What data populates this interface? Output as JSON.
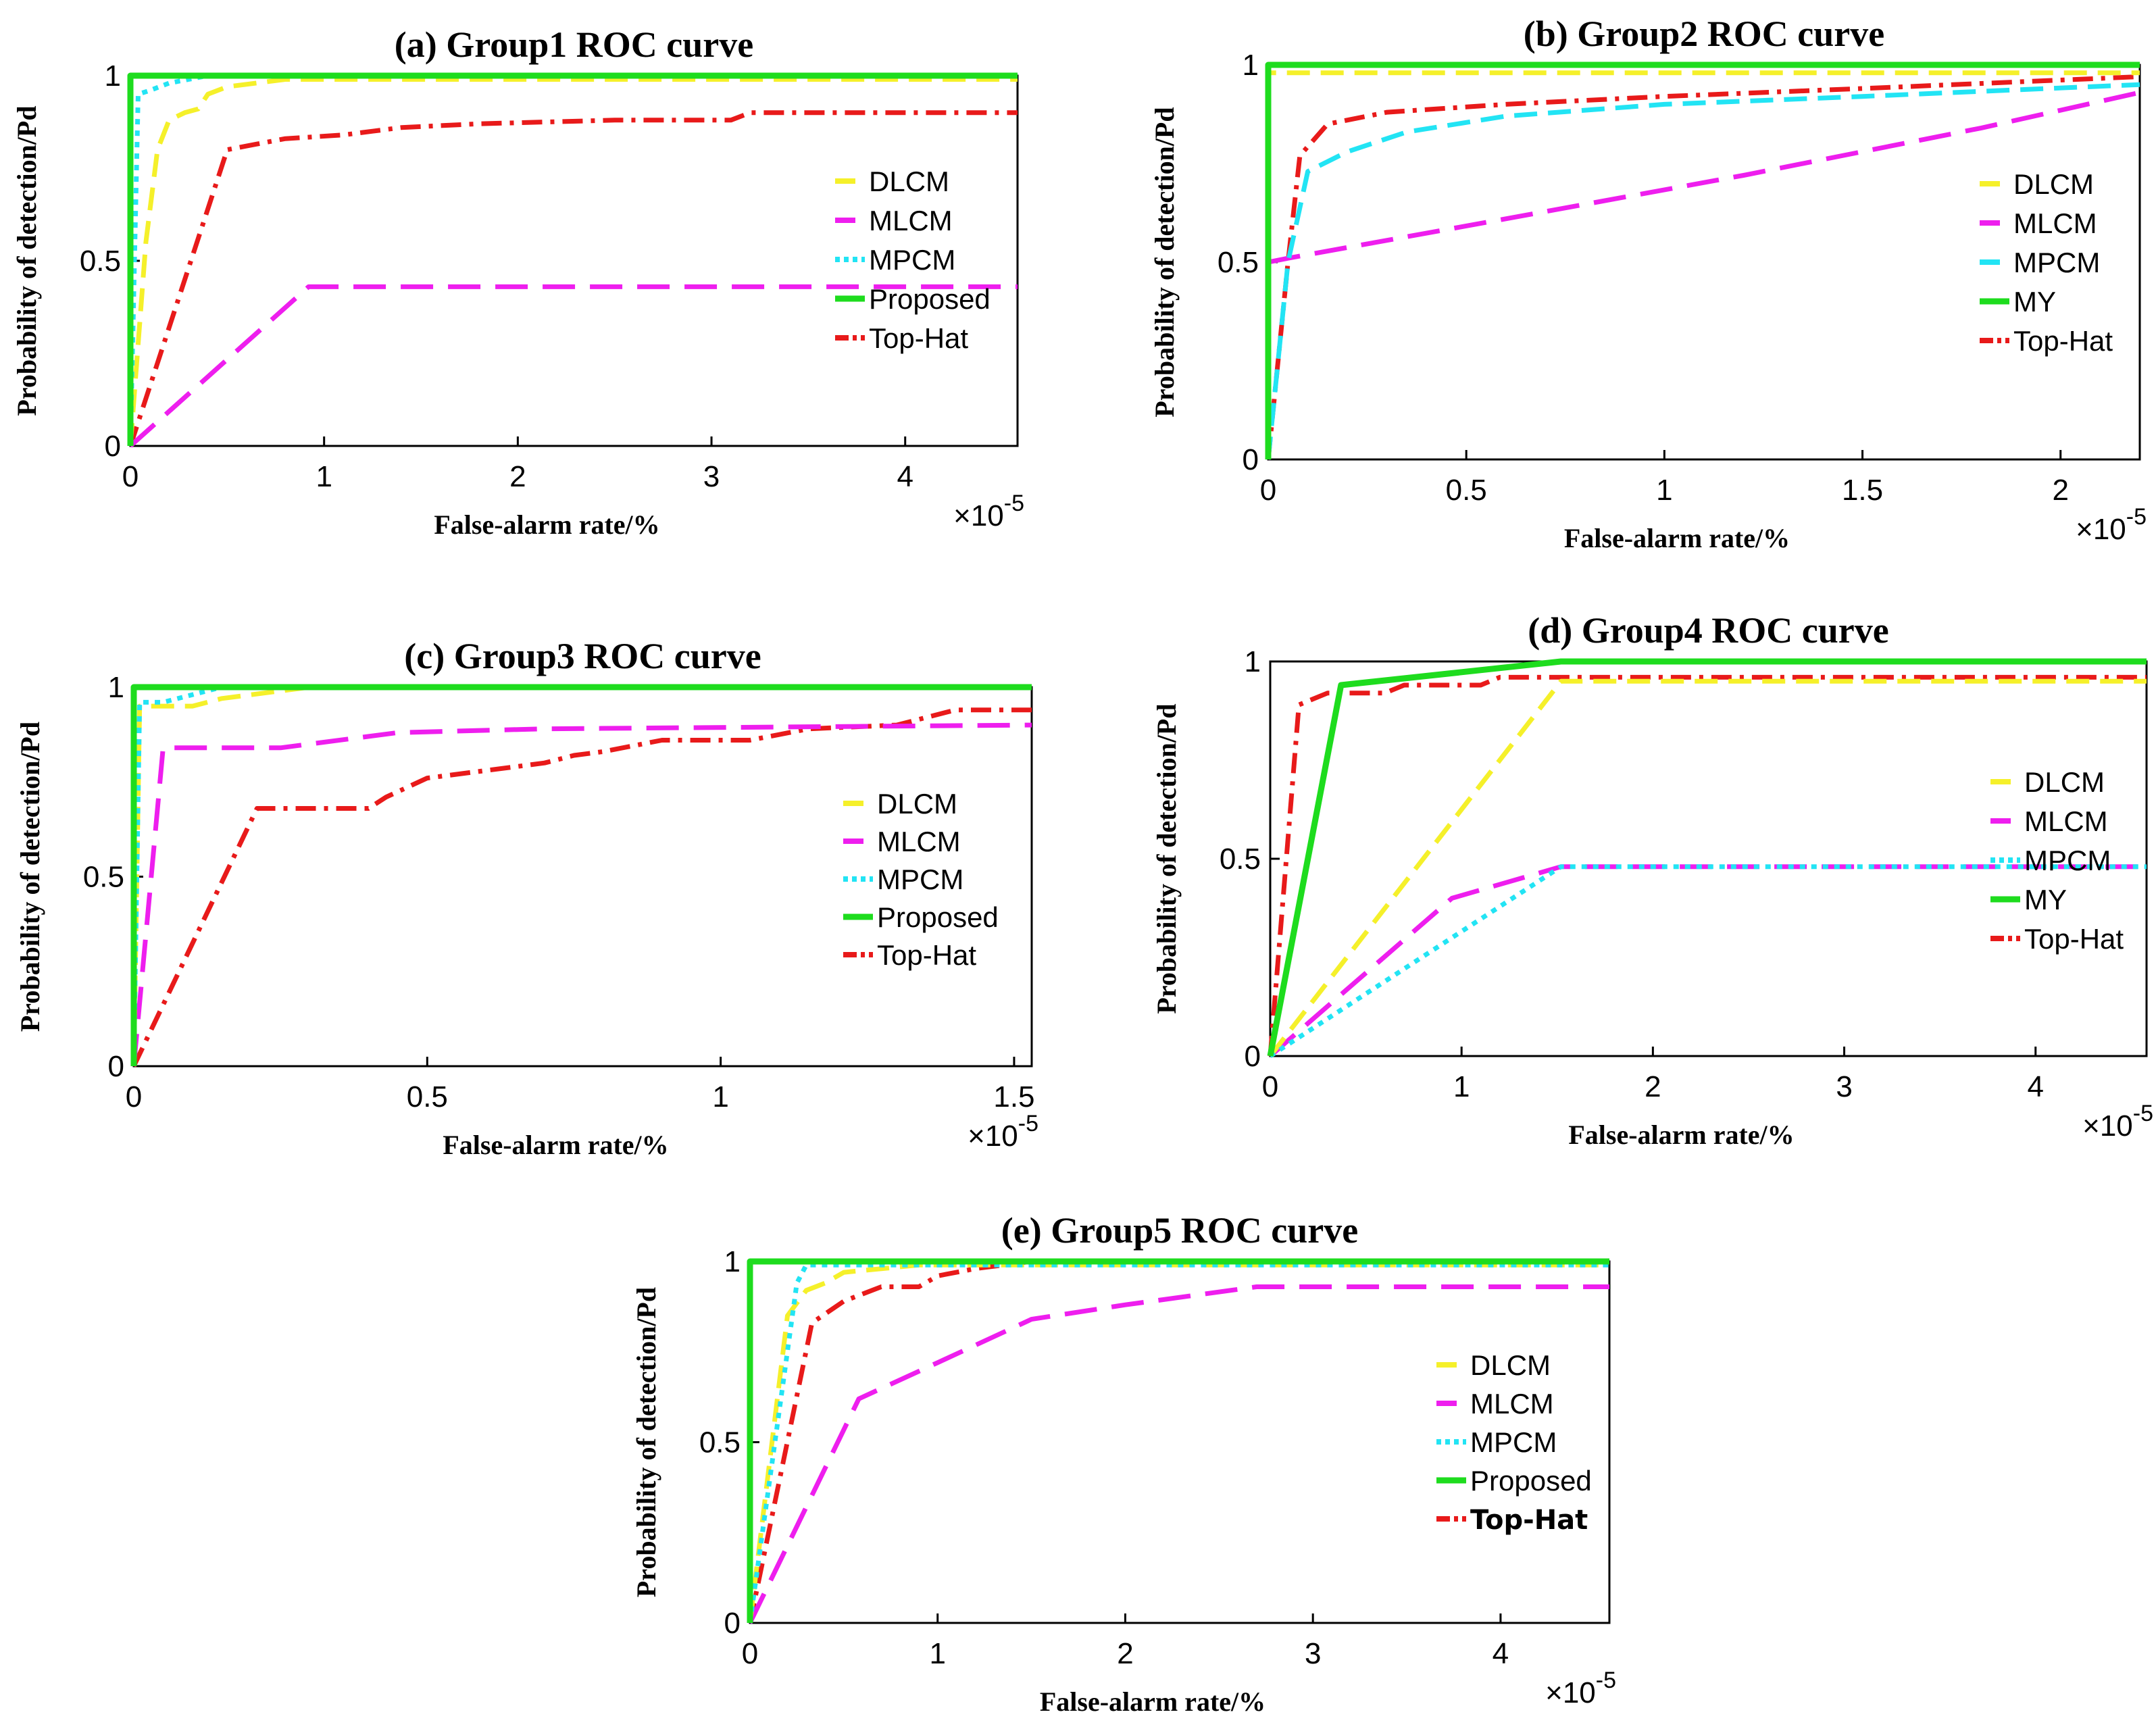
{
  "colors": {
    "DLCM": "#f5f02a",
    "MLCM": "#ee1eee",
    "MPCM": "#22e4f4",
    "Proposed": "#1edc1e",
    "MY": "#1edc1e",
    "Top-Hat": "#e81a1a"
  },
  "chart_data": [
    {
      "type": "line",
      "panel": "a",
      "title": "(a) Group1 ROC curve",
      "xlabel": "False-alarm rate/%",
      "ylabel": "Probability of detection/Pd",
      "x_multiplier": "×10",
      "x_exponent": "-5",
      "xlim": [
        0,
        4.58
      ],
      "ylim": [
        0,
        1
      ],
      "xticks": [
        0,
        1,
        2,
        3,
        4
      ],
      "xtick_labels": [
        "0",
        "1",
        "2",
        "3",
        "4"
      ],
      "yticks": [
        0,
        0.5,
        1
      ],
      "ytick_labels": [
        "0",
        "0.5",
        "1"
      ],
      "legend_position": "right",
      "series": [
        {
          "name": "DLCM",
          "style": "dash",
          "x": [
            0,
            0.08,
            0.14,
            0.2,
            0.28,
            0.35,
            0.4,
            0.5,
            0.8,
            4.58
          ],
          "y": [
            0,
            0.55,
            0.8,
            0.88,
            0.9,
            0.91,
            0.95,
            0.97,
            0.99,
            0.99
          ]
        },
        {
          "name": "MLCM",
          "style": "longdash",
          "x": [
            0,
            0.92,
            4.58
          ],
          "y": [
            0,
            0.43,
            0.43
          ]
        },
        {
          "name": "MPCM",
          "style": "dot",
          "x": [
            0,
            0.04,
            0.1,
            0.2,
            0.4,
            4.58
          ],
          "y": [
            0,
            0.95,
            0.96,
            0.98,
            1,
            1
          ]
        },
        {
          "name": "Proposed",
          "style": "solid",
          "x": [
            0,
            0,
            4.58
          ],
          "y": [
            0,
            1,
            1
          ]
        },
        {
          "name": "Top-Hat",
          "style": "dashdot",
          "x": [
            0,
            0.5,
            0.6,
            0.8,
            1.1,
            1.25,
            1.4,
            1.8,
            2.5,
            3.1,
            3.2,
            4.58
          ],
          "y": [
            0,
            0.8,
            0.81,
            0.83,
            0.84,
            0.85,
            0.86,
            0.87,
            0.88,
            0.88,
            0.9,
            0.9
          ]
        }
      ]
    },
    {
      "type": "line",
      "panel": "b",
      "title": "(b) Group2 ROC curve",
      "xlabel": "False-alarm rate/%",
      "ylabel": "Probability of detection/Pd",
      "x_multiplier": "×10",
      "x_exponent": "-5",
      "xlim": [
        0,
        2.2
      ],
      "ylim": [
        0,
        1
      ],
      "xticks": [
        0,
        0.5,
        1,
        1.5,
        2
      ],
      "xtick_labels": [
        "0",
        "0.5",
        "1",
        "1.5",
        "2"
      ],
      "yticks": [
        0,
        0.5,
        1
      ],
      "ytick_labels": [
        "0",
        "0.5",
        "1"
      ],
      "legend_position": "right",
      "series": [
        {
          "name": "DLCM",
          "style": "dash",
          "x": [
            0,
            0,
            2.2
          ],
          "y": [
            0,
            0.98,
            0.98
          ]
        },
        {
          "name": "MLCM",
          "style": "longdash",
          "x": [
            0,
            0.05,
            0.6,
            1.2,
            1.8,
            2.2
          ],
          "y": [
            0.5,
            0.51,
            0.61,
            0.72,
            0.84,
            0.93
          ]
        },
        {
          "name": "MPCM",
          "style": "dash",
          "x": [
            0,
            0.05,
            0.1,
            0.2,
            0.35,
            0.6,
            1.0,
            1.5,
            2.2
          ],
          "y": [
            0,
            0.5,
            0.73,
            0.78,
            0.83,
            0.87,
            0.9,
            0.92,
            0.95
          ]
        },
        {
          "name": "MY",
          "style": "solid",
          "x": [
            0,
            0,
            2.2
          ],
          "y": [
            0,
            1,
            1
          ]
        },
        {
          "name": "Top-Hat",
          "style": "dashdot",
          "x": [
            0,
            0.05,
            0.08,
            0.15,
            0.3,
            0.6,
            1.0,
            1.5,
            2.2
          ],
          "y": [
            0,
            0.5,
            0.77,
            0.85,
            0.88,
            0.9,
            0.92,
            0.94,
            0.97
          ]
        }
      ]
    },
    {
      "type": "line",
      "panel": "c",
      "title": "(c) Group3 ROC curve",
      "xlabel": "False-alarm rate/%",
      "ylabel": "Probability of detection/Pd",
      "x_multiplier": "×10",
      "x_exponent": "-5",
      "xlim": [
        0,
        1.53
      ],
      "ylim": [
        0,
        1
      ],
      "xticks": [
        0,
        0.5,
        1,
        1.5
      ],
      "xtick_labels": [
        "0",
        "0.5",
        "1",
        "1.5"
      ],
      "yticks": [
        0,
        0.5,
        1
      ],
      "ytick_labels": [
        "0",
        "0.5",
        "1"
      ],
      "legend_position": "right",
      "series": [
        {
          "name": "DLCM",
          "style": "dash",
          "x": [
            0,
            0.01,
            0.1,
            0.15,
            0.3,
            1.53
          ],
          "y": [
            0,
            0.95,
            0.95,
            0.97,
            1,
            1
          ]
        },
        {
          "name": "MLCM",
          "style": "longdash",
          "x": [
            0,
            0.05,
            0.25,
            0.45,
            0.7,
            1.53
          ],
          "y": [
            0,
            0.84,
            0.84,
            0.88,
            0.89,
            0.9
          ]
        },
        {
          "name": "MPCM",
          "style": "dot",
          "x": [
            0,
            0.01,
            0.05,
            0.15,
            1.53
          ],
          "y": [
            0,
            0.96,
            0.96,
            1,
            1
          ]
        },
        {
          "name": "Proposed",
          "style": "solid",
          "x": [
            0,
            0,
            1.53
          ],
          "y": [
            0,
            1,
            1
          ]
        },
        {
          "name": "Top-Hat",
          "style": "dashdot",
          "x": [
            0,
            0.21,
            0.4,
            0.43,
            0.5,
            0.6,
            0.7,
            0.75,
            0.8,
            0.9,
            1.05,
            1.15,
            1.3,
            1.4,
            1.53
          ],
          "y": [
            0,
            0.68,
            0.68,
            0.71,
            0.76,
            0.78,
            0.8,
            0.82,
            0.83,
            0.86,
            0.86,
            0.89,
            0.9,
            0.94,
            0.94
          ]
        }
      ]
    },
    {
      "type": "line",
      "panel": "d",
      "title": "(d) Group4 ROC curve",
      "xlabel": "False-alarm rate/%",
      "ylabel": "Probability of detection/Pd",
      "x_multiplier": "×10",
      "x_exponent": "-5",
      "xlim": [
        0,
        4.58
      ],
      "ylim": [
        0,
        1
      ],
      "xticks": [
        0,
        1,
        2,
        3,
        4
      ],
      "xtick_labels": [
        "0",
        "1",
        "2",
        "3",
        "4"
      ],
      "yticks": [
        0,
        0.5,
        1
      ],
      "ytick_labels": [
        "0",
        "0.5",
        "1"
      ],
      "legend_position": "right",
      "series": [
        {
          "name": "DLCM",
          "style": "dash",
          "x": [
            0,
            1.52,
            4.58
          ],
          "y": [
            0,
            0.95,
            0.95
          ]
        },
        {
          "name": "MLCM",
          "style": "longdash",
          "x": [
            0,
            0.95,
            1.52,
            4.58
          ],
          "y": [
            0,
            0.4,
            0.48,
            0.48
          ]
        },
        {
          "name": "MPCM",
          "style": "dot",
          "x": [
            0,
            1.52,
            4.58
          ],
          "y": [
            0,
            0.48,
            0.48
          ]
        },
        {
          "name": "MY",
          "style": "solid",
          "x": [
            0,
            0.37,
            1.52,
            4.58
          ],
          "y": [
            0,
            0.94,
            1,
            1
          ]
        },
        {
          "name": "Top-Hat",
          "style": "dashdot",
          "x": [
            0,
            0.15,
            0.3,
            0.6,
            0.7,
            1.1,
            1.2,
            4.58
          ],
          "y": [
            0,
            0.89,
            0.92,
            0.92,
            0.94,
            0.94,
            0.96,
            0.96
          ]
        }
      ]
    },
    {
      "type": "line",
      "panel": "e",
      "title": "(e) Group5 ROC curve",
      "xlabel": "False-alarm rate/%",
      "ylabel": "Probability of detection/Pd",
      "x_multiplier": "×10",
      "x_exponent": "-5",
      "xlim": [
        0,
        4.58
      ],
      "ylim": [
        0,
        1
      ],
      "xticks": [
        0,
        1,
        2,
        3,
        4
      ],
      "xtick_labels": [
        "0",
        "1",
        "2",
        "3",
        "4"
      ],
      "yticks": [
        0,
        0.5,
        1
      ],
      "ytick_labels": [
        "0",
        "0.5",
        "1"
      ],
      "legend_position": "right",
      "series": [
        {
          "name": "DLCM",
          "style": "dash",
          "x": [
            0,
            0.2,
            0.3,
            0.4,
            0.5,
            0.9,
            4.58
          ],
          "y": [
            0,
            0.85,
            0.92,
            0.94,
            0.97,
            0.99,
            0.99
          ]
        },
        {
          "name": "MLCM",
          "style": "longdash",
          "x": [
            0,
            0.58,
            1.0,
            1.5,
            2.0,
            2.7,
            4.58
          ],
          "y": [
            0,
            0.62,
            0.72,
            0.84,
            0.88,
            0.93,
            0.93
          ]
        },
        {
          "name": "MPCM",
          "style": "dot",
          "x": [
            0,
            0.25,
            0.3,
            4.58
          ],
          "y": [
            0,
            0.94,
            0.99,
            0.99
          ]
        },
        {
          "name": "Proposed",
          "style": "solid",
          "x": [
            0,
            0,
            4.58
          ],
          "y": [
            0,
            1,
            1
          ]
        },
        {
          "name": "Top-Hat",
          "style": "dashdot",
          "x": [
            0,
            0.33,
            0.5,
            0.7,
            0.9,
            1.0,
            1.2,
            1.5,
            4.58
          ],
          "y": [
            0,
            0.83,
            0.89,
            0.93,
            0.93,
            0.96,
            0.98,
            1,
            1
          ]
        }
      ]
    }
  ]
}
